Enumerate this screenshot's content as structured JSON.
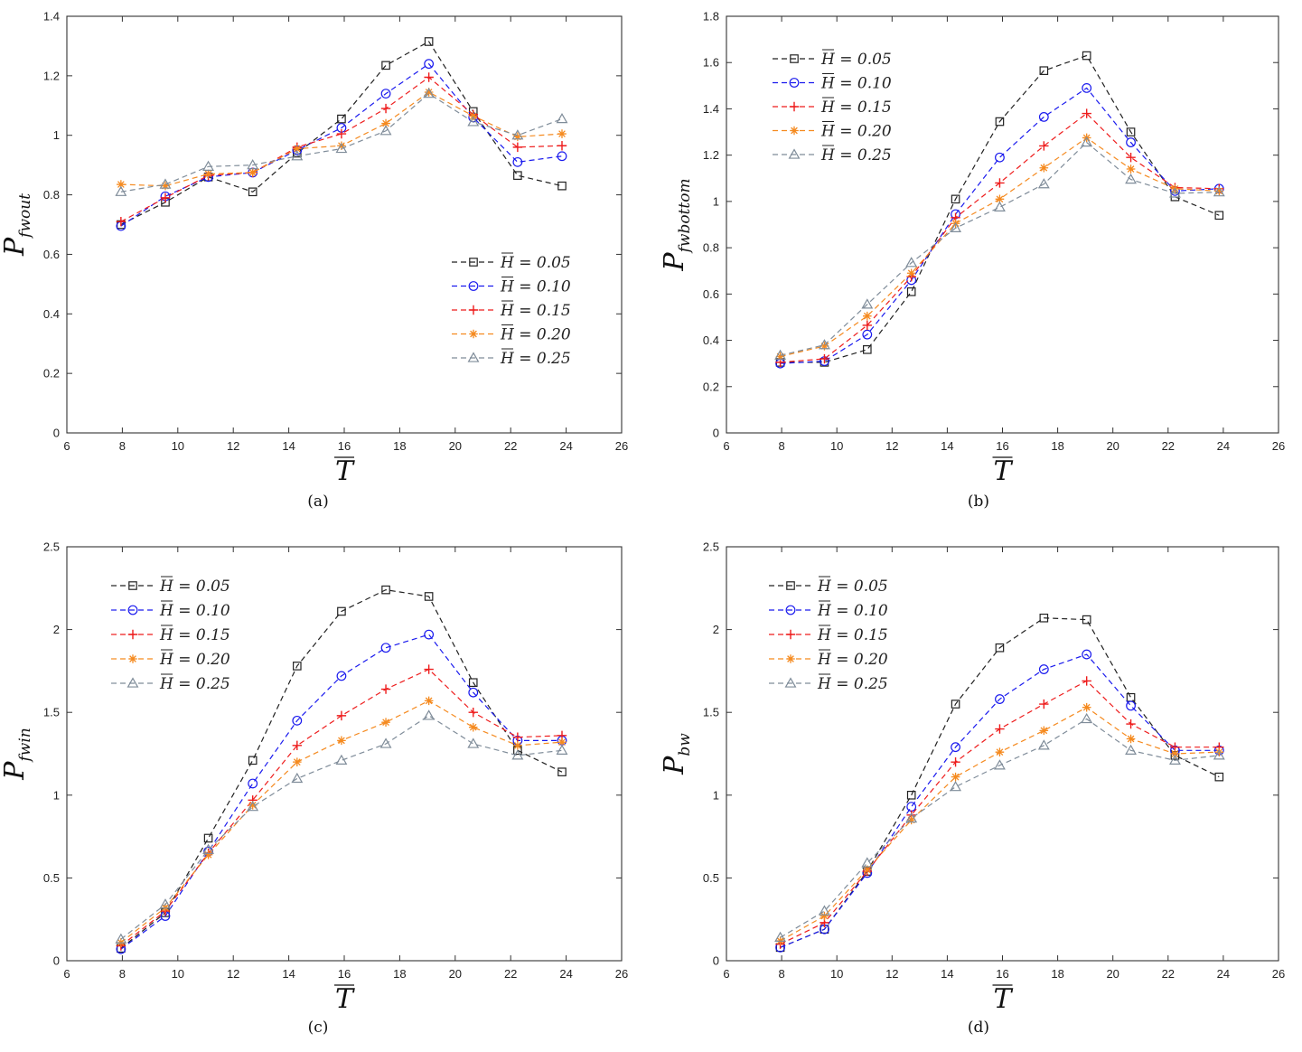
{
  "figure": {
    "subfigure_captions": [
      "(a)",
      "(b)",
      "(c)",
      "(d)"
    ]
  },
  "legend_entries": [
    "H = 0.05",
    "H = 0.10",
    "H = 0.15",
    "H = 0.20",
    "H = 0.25"
  ],
  "colors": {
    "H005": "#222222",
    "H010": "#1a1aee",
    "H015": "#ee1c1c",
    "H020": "#f58a1f",
    "H025": "#7f8c99"
  },
  "chart_data": [
    {
      "type": "line",
      "panel": "(a)",
      "ylabel": "P",
      "ylabel_sub": "fwout",
      "xlabel": "T",
      "xlim": [
        6,
        26
      ],
      "ylim": [
        0,
        1.4
      ],
      "xticks": [
        6,
        8,
        10,
        12,
        14,
        16,
        18,
        20,
        22,
        24,
        26
      ],
      "yticks": [
        0,
        0.2,
        0.4,
        0.6,
        0.8,
        1,
        1.2,
        1.4
      ],
      "legend_loc": "lower-right",
      "x": [
        7.95,
        9.55,
        11.1,
        12.7,
        14.3,
        15.9,
        17.5,
        19.05,
        20.65,
        22.25,
        23.85
      ],
      "series": [
        {
          "name": "H = 0.05",
          "marker": "square",
          "values": [
            0.7,
            0.775,
            0.86,
            0.81,
            0.94,
            1.055,
            1.235,
            1.315,
            1.08,
            0.865,
            0.83
          ]
        },
        {
          "name": "H = 0.10",
          "marker": "circle",
          "values": [
            0.695,
            0.795,
            0.86,
            0.875,
            0.95,
            1.025,
            1.14,
            1.24,
            1.06,
            0.91,
            0.93
          ]
        },
        {
          "name": "H = 0.15",
          "marker": "plus",
          "values": [
            0.71,
            0.79,
            0.865,
            0.875,
            0.96,
            1.005,
            1.09,
            1.195,
            1.07,
            0.96,
            0.965
          ]
        },
        {
          "name": "H = 0.20",
          "marker": "star",
          "values": [
            0.835,
            0.83,
            0.87,
            0.875,
            0.955,
            0.965,
            1.04,
            1.145,
            1.065,
            0.995,
            1.005
          ]
        },
        {
          "name": "H = 0.25",
          "marker": "triangle",
          "values": [
            0.81,
            0.835,
            0.895,
            0.9,
            0.93,
            0.955,
            1.015,
            1.14,
            1.045,
            1.0,
            1.055
          ]
        }
      ]
    },
    {
      "type": "line",
      "panel": "(b)",
      "ylabel": "P",
      "ylabel_sub": "fwbottom",
      "xlabel": "T",
      "xlim": [
        6,
        26
      ],
      "ylim": [
        0,
        1.8
      ],
      "xticks": [
        6,
        8,
        10,
        12,
        14,
        16,
        18,
        20,
        22,
        24,
        26
      ],
      "yticks": [
        0,
        0.2,
        0.4,
        0.6,
        0.8,
        1,
        1.2,
        1.4,
        1.6,
        1.8
      ],
      "legend_loc": "top-left",
      "x": [
        7.95,
        9.55,
        11.1,
        12.7,
        14.3,
        15.9,
        17.5,
        19.05,
        20.65,
        22.25,
        23.85
      ],
      "series": [
        {
          "name": "H = 0.05",
          "marker": "square",
          "values": [
            0.305,
            0.305,
            0.36,
            0.61,
            1.01,
            1.345,
            1.565,
            1.63,
            1.3,
            1.02,
            0.94
          ]
        },
        {
          "name": "H = 0.10",
          "marker": "circle",
          "values": [
            0.3,
            0.31,
            0.425,
            0.66,
            0.945,
            1.19,
            1.365,
            1.49,
            1.255,
            1.045,
            1.055
          ]
        },
        {
          "name": "H = 0.15",
          "marker": "plus",
          "values": [
            0.305,
            0.32,
            0.465,
            0.675,
            0.93,
            1.08,
            1.24,
            1.38,
            1.19,
            1.06,
            1.055
          ]
        },
        {
          "name": "H = 0.20",
          "marker": "star",
          "values": [
            0.33,
            0.375,
            0.505,
            0.69,
            0.905,
            1.01,
            1.145,
            1.275,
            1.14,
            1.055,
            1.045
          ]
        },
        {
          "name": "H = 0.25",
          "marker": "triangle",
          "values": [
            0.335,
            0.38,
            0.555,
            0.735,
            0.885,
            0.975,
            1.075,
            1.255,
            1.095,
            1.035,
            1.04
          ]
        }
      ]
    },
    {
      "type": "line",
      "panel": "(c)",
      "ylabel": "P",
      "ylabel_sub": "fwin",
      "xlabel": "T",
      "xlim": [
        6,
        26
      ],
      "ylim": [
        0,
        2.5
      ],
      "xticks": [
        6,
        8,
        10,
        12,
        14,
        16,
        18,
        20,
        22,
        24,
        26
      ],
      "yticks": [
        0,
        0.5,
        1,
        1.5,
        2,
        2.5
      ],
      "legend_loc": "top-left",
      "x": [
        7.95,
        9.55,
        11.1,
        12.7,
        14.3,
        15.9,
        17.5,
        19.05,
        20.65,
        22.25,
        23.85
      ],
      "series": [
        {
          "name": "H = 0.05",
          "marker": "square",
          "values": [
            0.075,
            0.29,
            0.74,
            1.21,
            1.78,
            2.11,
            2.24,
            2.2,
            1.68,
            1.27,
            1.14
          ]
        },
        {
          "name": "H = 0.10",
          "marker": "circle",
          "values": [
            0.07,
            0.27,
            0.66,
            1.07,
            1.45,
            1.72,
            1.89,
            1.97,
            1.62,
            1.33,
            1.33
          ]
        },
        {
          "name": "H = 0.15",
          "marker": "plus",
          "values": [
            0.09,
            0.3,
            0.65,
            0.97,
            1.3,
            1.48,
            1.64,
            1.76,
            1.5,
            1.35,
            1.36
          ]
        },
        {
          "name": "H = 0.20",
          "marker": "star",
          "values": [
            0.11,
            0.32,
            0.64,
            0.94,
            1.2,
            1.33,
            1.44,
            1.57,
            1.41,
            1.3,
            1.32
          ]
        },
        {
          "name": "H = 0.25",
          "marker": "triangle",
          "values": [
            0.13,
            0.34,
            0.67,
            0.93,
            1.1,
            1.21,
            1.31,
            1.48,
            1.31,
            1.24,
            1.27
          ]
        }
      ]
    },
    {
      "type": "line",
      "panel": "(d)",
      "ylabel": "P",
      "ylabel_sub": "bw",
      "xlabel": "T",
      "xlim": [
        6,
        26
      ],
      "ylim": [
        0,
        2.5
      ],
      "xticks": [
        6,
        8,
        10,
        12,
        14,
        16,
        18,
        20,
        22,
        24,
        26
      ],
      "yticks": [
        0,
        0.5,
        1,
        1.5,
        2,
        2.5
      ],
      "legend_loc": "top-left",
      "x": [
        7.95,
        9.55,
        11.1,
        12.7,
        14.3,
        15.9,
        17.5,
        19.05,
        20.65,
        22.25,
        23.85
      ],
      "series": [
        {
          "name": "H = 0.05",
          "marker": "square",
          "values": [
            0.08,
            0.19,
            0.54,
            1.0,
            1.55,
            1.89,
            2.07,
            2.06,
            1.59,
            1.24,
            1.11
          ]
        },
        {
          "name": "H = 0.10",
          "marker": "circle",
          "values": [
            0.08,
            0.19,
            0.53,
            0.93,
            1.29,
            1.58,
            1.76,
            1.85,
            1.54,
            1.27,
            1.27
          ]
        },
        {
          "name": "H = 0.15",
          "marker": "plus",
          "values": [
            0.1,
            0.23,
            0.54,
            0.88,
            1.2,
            1.4,
            1.55,
            1.69,
            1.43,
            1.29,
            1.29
          ]
        },
        {
          "name": "H = 0.20",
          "marker": "star",
          "values": [
            0.12,
            0.27,
            0.55,
            0.85,
            1.11,
            1.26,
            1.39,
            1.53,
            1.34,
            1.25,
            1.26
          ]
        },
        {
          "name": "H = 0.25",
          "marker": "triangle",
          "values": [
            0.14,
            0.3,
            0.59,
            0.86,
            1.05,
            1.18,
            1.3,
            1.46,
            1.27,
            1.21,
            1.24
          ]
        }
      ]
    }
  ]
}
